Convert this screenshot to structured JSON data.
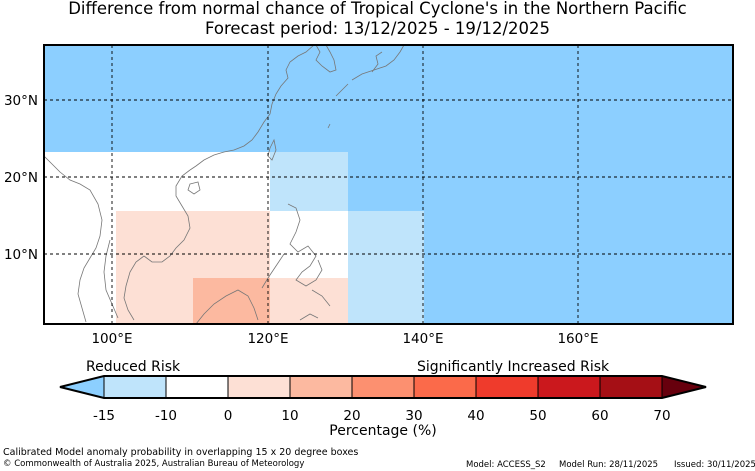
{
  "title": "Difference from normal chance of Tropical Cyclone's in the Northern Pacific",
  "subtitle": "Forecast period: 13/12/2025 - 19/12/2025",
  "map": {
    "lon_ticks": [
      "100°E",
      "120°E",
      "140°E",
      "160°E"
    ],
    "lat_ticks": [
      "10°N",
      "20°N",
      "30°N"
    ],
    "colors": {
      "ocean_reduced": "#8ccfff",
      "slight_reduced": "#bfe4fb",
      "neutral": "#ffffff",
      "increase_10": "#fde0d5",
      "increase_20": "#fcb9a0",
      "coast": "#777777"
    }
  },
  "colorbar": {
    "left_label": "Reduced Risk",
    "right_label": "Significantly Increased Risk",
    "ticks": [
      "-15",
      "-10",
      "0",
      "10",
      "20",
      "30",
      "40",
      "50",
      "60",
      "70"
    ],
    "bins": [
      "#8ccfff",
      "#bfe4fb",
      "#ffffff",
      "#fde0d5",
      "#fcb9a0",
      "#fc9070",
      "#fb6a4a",
      "#ef3b2c",
      "#cb181d",
      "#a50f15",
      "#67000d"
    ],
    "xlabel": "Percentage (%)"
  },
  "footer": {
    "line1": "Calibrated Model anomaly probability in overlapping 15 x 20 degree boxes",
    "copyright": "© Commonwealth of Australia 2025, Australian Bureau of Meteorology",
    "model": "Model: ACCESS_S2",
    "model_run": "Model Run: 28/11/2025",
    "issued": "Issued: 30/11/2025"
  }
}
